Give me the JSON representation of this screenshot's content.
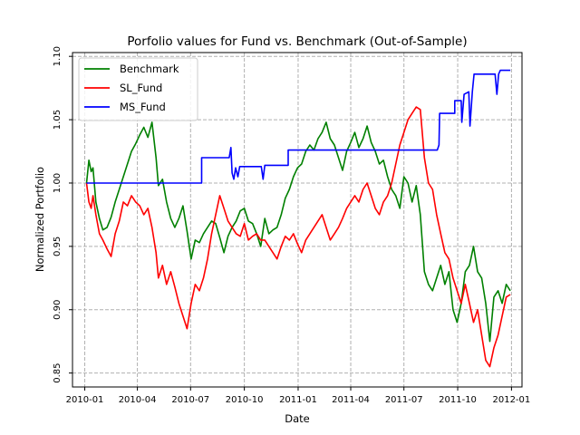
{
  "chart_data": {
    "type": "line",
    "title": "Porfolio values for Fund vs. Benchmark (Out-of-Sample)",
    "xlabel": "Date",
    "ylabel": "Normalized Portfolio",
    "x_ticks": [
      "2010-01",
      "2010-04",
      "2010-07",
      "2010-10",
      "2011-01",
      "2011-04",
      "2011-07",
      "2011-10",
      "2012-01"
    ],
    "y_ticks": [
      "0.85",
      "0.90",
      "0.95",
      "1.00",
      "1.05",
      "1.10"
    ],
    "xlim": [
      "2009-12-11",
      "2012-01-19"
    ],
    "ylim": [
      0.839,
      1.103
    ],
    "grid": true,
    "legend_position": "top-left",
    "series": [
      {
        "name": "Benchmark",
        "color": "#008000",
        "points": [
          [
            "2010-01-04",
            1.0
          ],
          [
            "2010-01-08",
            1.018
          ],
          [
            "2010-01-12",
            1.009
          ],
          [
            "2010-01-15",
            1.012
          ],
          [
            "2010-01-20",
            0.985
          ],
          [
            "2010-01-26",
            0.972
          ],
          [
            "2010-02-01",
            0.963
          ],
          [
            "2010-02-08",
            0.965
          ],
          [
            "2010-02-15",
            0.973
          ],
          [
            "2010-02-22",
            0.985
          ],
          [
            "2010-03-01",
            0.995
          ],
          [
            "2010-03-08",
            1.005
          ],
          [
            "2010-03-15",
            1.015
          ],
          [
            "2010-03-22",
            1.025
          ],
          [
            "2010-03-29",
            1.031
          ],
          [
            "2010-04-05",
            1.038
          ],
          [
            "2010-04-12",
            1.044
          ],
          [
            "2010-04-19",
            1.036
          ],
          [
            "2010-04-26",
            1.048
          ],
          [
            "2010-05-03",
            1.02
          ],
          [
            "2010-05-07",
            0.998
          ],
          [
            "2010-05-14",
            1.003
          ],
          [
            "2010-05-21",
            0.985
          ],
          [
            "2010-05-28",
            0.972
          ],
          [
            "2010-06-04",
            0.965
          ],
          [
            "2010-06-11",
            0.972
          ],
          [
            "2010-06-18",
            0.982
          ],
          [
            "2010-06-25",
            0.962
          ],
          [
            "2010-07-02",
            0.94
          ],
          [
            "2010-07-09",
            0.955
          ],
          [
            "2010-07-16",
            0.953
          ],
          [
            "2010-07-23",
            0.96
          ],
          [
            "2010-07-30",
            0.965
          ],
          [
            "2010-08-06",
            0.97
          ],
          [
            "2010-08-13",
            0.968
          ],
          [
            "2010-08-20",
            0.957
          ],
          [
            "2010-08-27",
            0.945
          ],
          [
            "2010-09-03",
            0.958
          ],
          [
            "2010-09-10",
            0.965
          ],
          [
            "2010-09-17",
            0.97
          ],
          [
            "2010-09-24",
            0.978
          ],
          [
            "2010-10-01",
            0.98
          ],
          [
            "2010-10-08",
            0.97
          ],
          [
            "2010-10-15",
            0.968
          ],
          [
            "2010-10-22",
            0.96
          ],
          [
            "2010-10-29",
            0.95
          ],
          [
            "2010-11-05",
            0.972
          ],
          [
            "2010-11-12",
            0.96
          ],
          [
            "2010-11-19",
            0.963
          ],
          [
            "2010-11-26",
            0.965
          ],
          [
            "2010-12-03",
            0.975
          ],
          [
            "2010-12-10",
            0.988
          ],
          [
            "2010-12-17",
            0.995
          ],
          [
            "2010-12-24",
            1.005
          ],
          [
            "2010-12-31",
            1.012
          ],
          [
            "2011-01-07",
            1.015
          ],
          [
            "2011-01-14",
            1.025
          ],
          [
            "2011-01-21",
            1.03
          ],
          [
            "2011-01-28",
            1.026
          ],
          [
            "2011-02-04",
            1.035
          ],
          [
            "2011-02-11",
            1.04
          ],
          [
            "2011-02-18",
            1.048
          ],
          [
            "2011-02-25",
            1.035
          ],
          [
            "2011-03-04",
            1.03
          ],
          [
            "2011-03-11",
            1.02
          ],
          [
            "2011-03-18",
            1.01
          ],
          [
            "2011-03-25",
            1.025
          ],
          [
            "2011-04-01",
            1.032
          ],
          [
            "2011-04-08",
            1.04
          ],
          [
            "2011-04-15",
            1.028
          ],
          [
            "2011-04-22",
            1.035
          ],
          [
            "2011-04-29",
            1.045
          ],
          [
            "2011-05-06",
            1.032
          ],
          [
            "2011-05-13",
            1.025
          ],
          [
            "2011-05-20",
            1.015
          ],
          [
            "2011-05-27",
            1.018
          ],
          [
            "2011-06-03",
            1.005
          ],
          [
            "2011-06-10",
            0.995
          ],
          [
            "2011-06-17",
            0.99
          ],
          [
            "2011-06-24",
            0.98
          ],
          [
            "2011-07-01",
            1.005
          ],
          [
            "2011-07-08",
            1.0
          ],
          [
            "2011-07-15",
            0.985
          ],
          [
            "2011-07-22",
            0.998
          ],
          [
            "2011-07-29",
            0.975
          ],
          [
            "2011-08-05",
            0.93
          ],
          [
            "2011-08-12",
            0.92
          ],
          [
            "2011-08-19",
            0.915
          ],
          [
            "2011-08-26",
            0.925
          ],
          [
            "2011-09-02",
            0.935
          ],
          [
            "2011-09-09",
            0.92
          ],
          [
            "2011-09-16",
            0.93
          ],
          [
            "2011-09-23",
            0.9
          ],
          [
            "2011-09-30",
            0.89
          ],
          [
            "2011-10-07",
            0.905
          ],
          [
            "2011-10-14",
            0.93
          ],
          [
            "2011-10-21",
            0.935
          ],
          [
            "2011-10-28",
            0.95
          ],
          [
            "2011-11-04",
            0.93
          ],
          [
            "2011-11-11",
            0.925
          ],
          [
            "2011-11-18",
            0.905
          ],
          [
            "2011-11-25",
            0.875
          ],
          [
            "2011-12-02",
            0.91
          ],
          [
            "2011-12-09",
            0.915
          ],
          [
            "2011-12-16",
            0.905
          ],
          [
            "2011-12-23",
            0.92
          ],
          [
            "2011-12-30",
            0.915
          ]
        ]
      },
      {
        "name": "SL_Fund",
        "color": "#ff0000",
        "points": [
          [
            "2010-01-04",
            1.0
          ],
          [
            "2010-01-08",
            0.985
          ],
          [
            "2010-01-12",
            0.98
          ],
          [
            "2010-01-15",
            0.99
          ],
          [
            "2010-01-20",
            0.975
          ],
          [
            "2010-01-26",
            0.96
          ],
          [
            "2010-02-01",
            0.955
          ],
          [
            "2010-02-08",
            0.948
          ],
          [
            "2010-02-15",
            0.942
          ],
          [
            "2010-02-22",
            0.96
          ],
          [
            "2010-03-01",
            0.97
          ],
          [
            "2010-03-08",
            0.985
          ],
          [
            "2010-03-15",
            0.982
          ],
          [
            "2010-03-22",
            0.99
          ],
          [
            "2010-03-29",
            0.985
          ],
          [
            "2010-04-05",
            0.982
          ],
          [
            "2010-04-12",
            0.975
          ],
          [
            "2010-04-19",
            0.98
          ],
          [
            "2010-04-26",
            0.965
          ],
          [
            "2010-05-03",
            0.945
          ],
          [
            "2010-05-07",
            0.925
          ],
          [
            "2010-05-14",
            0.935
          ],
          [
            "2010-05-21",
            0.92
          ],
          [
            "2010-05-28",
            0.93
          ],
          [
            "2010-06-04",
            0.918
          ],
          [
            "2010-06-11",
            0.905
          ],
          [
            "2010-06-18",
            0.895
          ],
          [
            "2010-06-25",
            0.885
          ],
          [
            "2010-07-02",
            0.905
          ],
          [
            "2010-07-09",
            0.92
          ],
          [
            "2010-07-16",
            0.915
          ],
          [
            "2010-07-23",
            0.925
          ],
          [
            "2010-07-30",
            0.94
          ],
          [
            "2010-08-06",
            0.96
          ],
          [
            "2010-08-13",
            0.975
          ],
          [
            "2010-08-20",
            0.99
          ],
          [
            "2010-08-27",
            0.98
          ],
          [
            "2010-09-03",
            0.97
          ],
          [
            "2010-09-10",
            0.965
          ],
          [
            "2010-09-17",
            0.96
          ],
          [
            "2010-09-24",
            0.958
          ],
          [
            "2010-10-01",
            0.968
          ],
          [
            "2010-10-08",
            0.955
          ],
          [
            "2010-10-15",
            0.958
          ],
          [
            "2010-10-22",
            0.96
          ],
          [
            "2010-10-29",
            0.955
          ],
          [
            "2010-11-05",
            0.955
          ],
          [
            "2010-11-12",
            0.95
          ],
          [
            "2010-11-19",
            0.945
          ],
          [
            "2010-11-26",
            0.94
          ],
          [
            "2010-12-03",
            0.95
          ],
          [
            "2010-12-10",
            0.958
          ],
          [
            "2010-12-17",
            0.955
          ],
          [
            "2010-12-24",
            0.96
          ],
          [
            "2010-12-31",
            0.952
          ],
          [
            "2011-01-07",
            0.945
          ],
          [
            "2011-01-14",
            0.955
          ],
          [
            "2011-01-21",
            0.96
          ],
          [
            "2011-01-28",
            0.965
          ],
          [
            "2011-02-04",
            0.97
          ],
          [
            "2011-02-11",
            0.975
          ],
          [
            "2011-02-18",
            0.965
          ],
          [
            "2011-02-25",
            0.955
          ],
          [
            "2011-03-04",
            0.96
          ],
          [
            "2011-03-11",
            0.965
          ],
          [
            "2011-03-18",
            0.972
          ],
          [
            "2011-03-25",
            0.98
          ],
          [
            "2011-04-01",
            0.985
          ],
          [
            "2011-04-08",
            0.99
          ],
          [
            "2011-04-15",
            0.985
          ],
          [
            "2011-04-22",
            0.995
          ],
          [
            "2011-04-29",
            1.0
          ],
          [
            "2011-05-06",
            0.99
          ],
          [
            "2011-05-13",
            0.98
          ],
          [
            "2011-05-20",
            0.975
          ],
          [
            "2011-05-27",
            0.985
          ],
          [
            "2011-06-03",
            0.99
          ],
          [
            "2011-06-10",
            1.0
          ],
          [
            "2011-06-17",
            1.015
          ],
          [
            "2011-06-24",
            1.03
          ],
          [
            "2011-07-01",
            1.04
          ],
          [
            "2011-07-08",
            1.05
          ],
          [
            "2011-07-15",
            1.055
          ],
          [
            "2011-07-22",
            1.06
          ],
          [
            "2011-07-29",
            1.058
          ],
          [
            "2011-08-05",
            1.02
          ],
          [
            "2011-08-12",
            1.0
          ],
          [
            "2011-08-19",
            0.995
          ],
          [
            "2011-08-26",
            0.975
          ],
          [
            "2011-09-02",
            0.96
          ],
          [
            "2011-09-09",
            0.945
          ],
          [
            "2011-09-16",
            0.94
          ],
          [
            "2011-09-23",
            0.925
          ],
          [
            "2011-09-30",
            0.915
          ],
          [
            "2011-10-07",
            0.905
          ],
          [
            "2011-10-14",
            0.92
          ],
          [
            "2011-10-21",
            0.905
          ],
          [
            "2011-10-28",
            0.89
          ],
          [
            "2011-11-04",
            0.9
          ],
          [
            "2011-11-11",
            0.88
          ],
          [
            "2011-11-18",
            0.86
          ],
          [
            "2011-11-25",
            0.855
          ],
          [
            "2011-12-02",
            0.87
          ],
          [
            "2011-12-09",
            0.88
          ],
          [
            "2011-12-16",
            0.895
          ],
          [
            "2011-12-23",
            0.91
          ],
          [
            "2011-12-30",
            0.912
          ]
        ]
      },
      {
        "name": "MS_Fund",
        "color": "#0000ff",
        "points": [
          [
            "2010-01-04",
            1.0
          ],
          [
            "2010-07-20",
            1.0
          ],
          [
            "2010-07-20",
            1.02
          ],
          [
            "2010-09-05",
            1.02
          ],
          [
            "2010-09-08",
            1.028
          ],
          [
            "2010-09-10",
            1.008
          ],
          [
            "2010-09-13",
            1.003
          ],
          [
            "2010-09-16",
            1.012
          ],
          [
            "2010-09-20",
            1.005
          ],
          [
            "2010-09-23",
            1.013
          ],
          [
            "2010-10-30",
            1.013
          ],
          [
            "2010-11-02",
            1.003
          ],
          [
            "2010-11-05",
            1.014
          ],
          [
            "2010-12-15",
            1.014
          ],
          [
            "2010-12-15",
            1.026
          ],
          [
            "2011-08-27",
            1.026
          ],
          [
            "2011-08-30",
            1.03
          ],
          [
            "2011-08-31",
            1.055
          ],
          [
            "2011-09-26",
            1.055
          ],
          [
            "2011-09-26",
            1.065
          ],
          [
            "2011-10-07",
            1.065
          ],
          [
            "2011-10-08",
            1.048
          ],
          [
            "2011-10-12",
            1.07
          ],
          [
            "2011-10-20",
            1.072
          ],
          [
            "2011-10-22",
            1.045
          ],
          [
            "2011-10-26",
            1.072
          ],
          [
            "2011-10-29",
            1.086
          ],
          [
            "2011-12-04",
            1.086
          ],
          [
            "2011-12-07",
            1.07
          ],
          [
            "2011-12-10",
            1.086
          ],
          [
            "2011-12-13",
            1.089
          ],
          [
            "2011-12-30",
            1.089
          ]
        ]
      }
    ]
  }
}
